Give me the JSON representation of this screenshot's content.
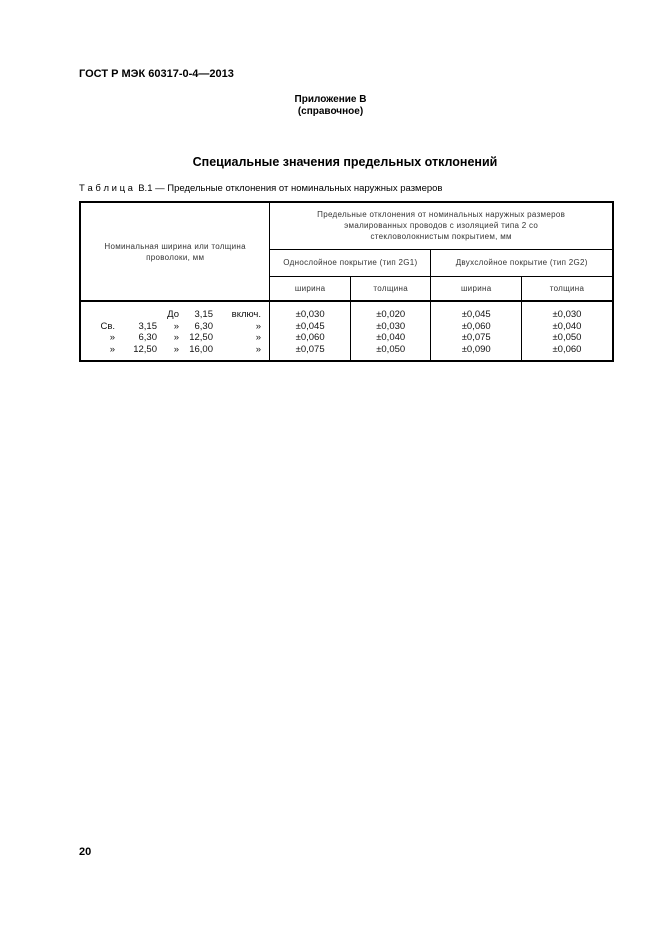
{
  "header": "ГОСТ Р МЭК 60317-0-4—2013",
  "appendix": {
    "title": "Приложение В",
    "subtitle": "(справочное)"
  },
  "section_title": "Специальные значения предельных отклонений",
  "caption": "Т а б л и ц а  В.1 — Предельные отклонения от номинальных наружных размеров",
  "table": {
    "col1": "Номинальная ширина или толщина проволоки, мм",
    "group": "Предельные отклонения от номинальных наружных размеров эмалированных проводов с изоляцией типа 2 со стекловолокнистым покрытием, мм",
    "sub1": "Однослойное покрытие (тип 2G1)",
    "sub2": "Двухслойное покрытие (тип 2G2)",
    "h": [
      "ширина",
      "толщина",
      "ширина",
      "толщина"
    ],
    "ranges": [
      [
        "",
        "",
        "До",
        "3,15",
        "включ."
      ],
      [
        "Св.",
        "3,15",
        "»",
        "6,30",
        "»"
      ],
      [
        "»",
        "6,30",
        "»",
        "12,50",
        "»"
      ],
      [
        "»",
        "12,50",
        "»",
        "16,00",
        "»"
      ]
    ],
    "cols": [
      [
        "±0,030",
        "±0,045",
        "±0,060",
        "±0,075"
      ],
      [
        "±0,020",
        "±0,030",
        "±0,040",
        "±0,050"
      ],
      [
        "±0,045",
        "±0,060",
        "±0,075",
        "±0,090"
      ],
      [
        "±0,030",
        "±0,040",
        "±0,050",
        "±0,060"
      ]
    ]
  },
  "page_number": "20"
}
